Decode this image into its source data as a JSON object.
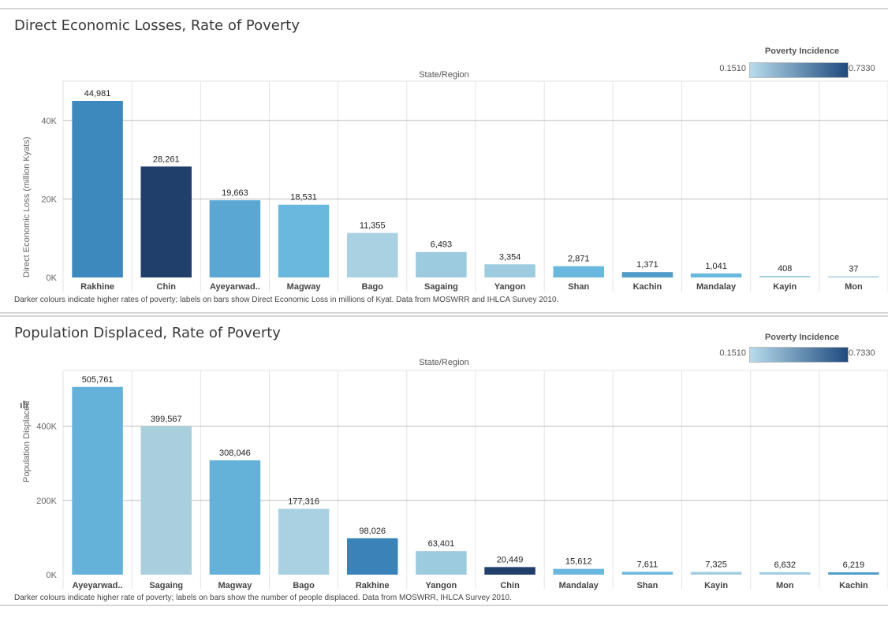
{
  "chart_data": [
    {
      "type": "bar",
      "title": "Direct Economic Losses, Rate of Poverty",
      "xlabel": "State/Region",
      "ylabel": "Direct Economic Loss (million Kyats)",
      "categories": [
        "Rakhine",
        "Chin",
        "Ayeyarwad..",
        "Magway",
        "Bago",
        "Sagaing",
        "Yangon",
        "Shan",
        "Kachin",
        "Mandalay",
        "Kayin",
        "Mon"
      ],
      "values": [
        44981,
        28261,
        19663,
        18531,
        11355,
        6493,
        3354,
        2871,
        1371,
        1041,
        408,
        37
      ],
      "value_labels": [
        "44,981",
        "28,261",
        "19,663",
        "18,531",
        "11,355",
        "6,493",
        "3,354",
        "2,871",
        "1,371",
        "1,041",
        "408",
        "37"
      ],
      "colors": [
        "#3d88bc",
        "#203f6b",
        "#5aa7d3",
        "#6bb8de",
        "#a9d1e2",
        "#9ccbe0",
        "#9dcbe0",
        "#6bb8de",
        "#4d9bc9",
        "#6bb8de",
        "#9fcde1",
        "#9fcde1"
      ],
      "ylim": [
        0,
        50000
      ],
      "yticks": [
        0,
        20000,
        40000
      ],
      "ytick_labels": [
        "0K",
        "20K",
        "40K"
      ],
      "grid": true,
      "legend": {
        "title": "Poverty Incidence",
        "min_label": "0.1510",
        "max_label": "0.7330",
        "placement": "top-right"
      },
      "footnote": "Darker colours indicate higher rates of poverty;  labels on bars show Direct Economic Loss in millions of Kyat. Data from MOSWRR and IHLCA Survey 2010."
    },
    {
      "type": "bar",
      "title": "Population Displaced, Rate of Poverty",
      "xlabel": "State/Region",
      "ylabel": "Population Displaced",
      "categories": [
        "Ayeyarwad..",
        "Sagaing",
        "Magway",
        "Bago",
        "Rakhine",
        "Yangon",
        "Chin",
        "Mandalay",
        "Shan",
        "Kayin",
        "Mon",
        "Kachin"
      ],
      "values": [
        505761,
        399567,
        308046,
        177316,
        98026,
        63401,
        20449,
        15612,
        7611,
        7325,
        6632,
        6219
      ],
      "value_labels": [
        "505,761",
        "399,567",
        "308,046",
        "177,316",
        "98,026",
        "63,401",
        "20,449",
        "15,612",
        "7,611",
        "7,325",
        "6,632",
        "6,219"
      ],
      "colors": [
        "#64b1da",
        "#aacfdc",
        "#64b1da",
        "#a9d1e2",
        "#3a82b8",
        "#9ccbe0",
        "#203f6b",
        "#6bb8de",
        "#6bb8de",
        "#a0cde0",
        "#a0cde0",
        "#4d9bc9"
      ],
      "ylim": [
        0,
        550000
      ],
      "yticks": [
        0,
        200000,
        400000
      ],
      "ytick_labels": [
        "0K",
        "200K",
        "400K"
      ],
      "grid": true,
      "legend": {
        "title": "Poverty Incidence",
        "min_label": "0.1510",
        "max_label": "0.7330",
        "placement": "top-right"
      },
      "footnote": "Darker colours indicate higher rate of poverty; labels on bars show the number of people displaced. Data from MOSWRR, IHLCA Survey 2010."
    }
  ],
  "icons": {
    "chart_icon": "bar-chart-icon",
    "chart_icon_glyph": "ılı"
  }
}
